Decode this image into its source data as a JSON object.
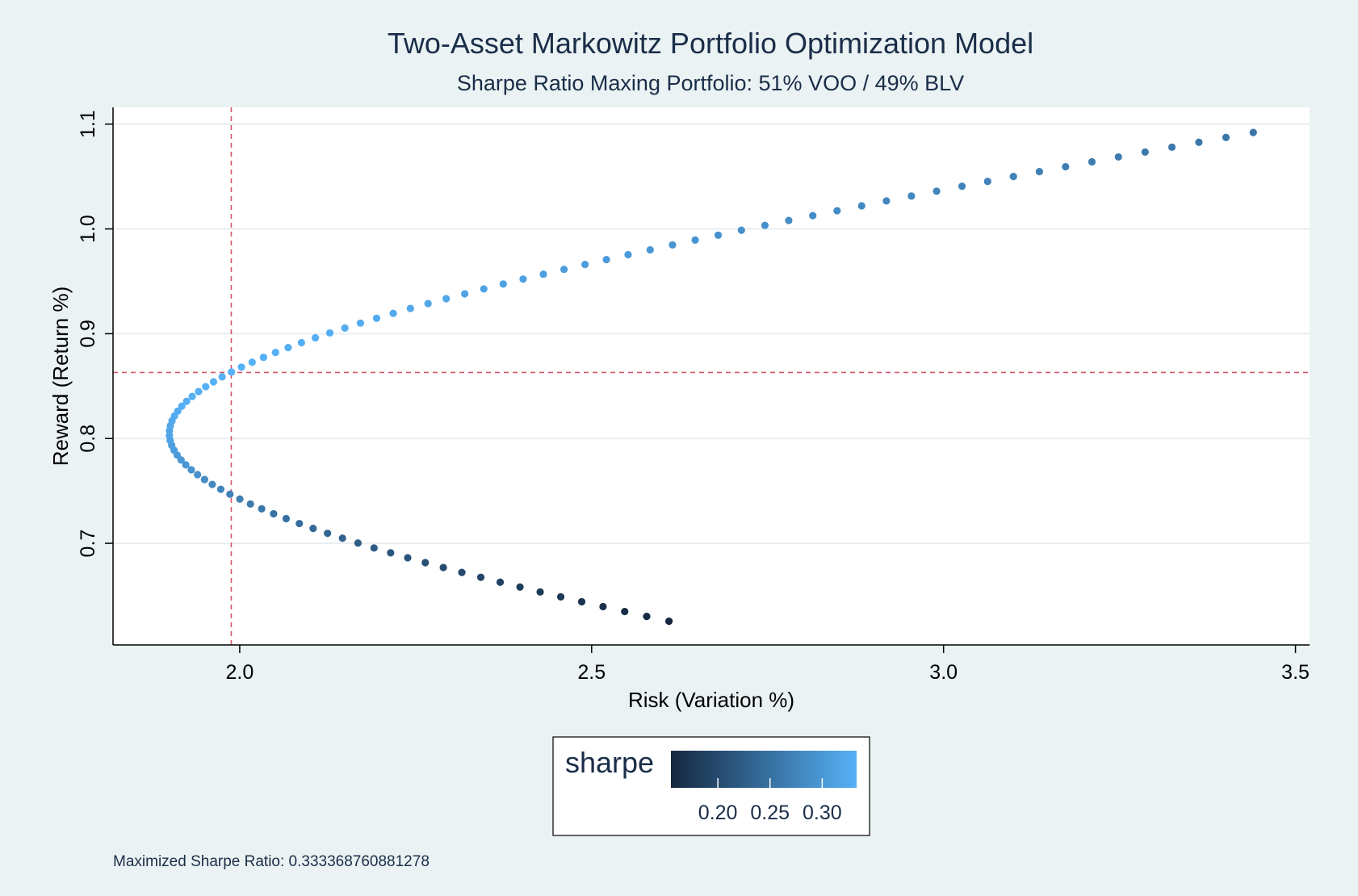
{
  "chart_data": {
    "type": "scatter",
    "title": "Two-Asset Markowitz Portfolio Optimization Model",
    "subtitle": "Sharpe Ratio Maxing Portfolio: 51% VOO / 49% BLV",
    "xlabel": "Risk (Variation %)",
    "ylabel": "Reward (Return %)",
    "xlim": [
      1.82,
      3.52
    ],
    "ylim": [
      0.603,
      1.116
    ],
    "x_ticks": [
      "2.0",
      "2.5",
      "3.0",
      "3.5"
    ],
    "y_ticks": [
      "0.7",
      "0.8",
      "0.9",
      "1.0",
      "1.1"
    ],
    "grid": "horizontal",
    "reference_lines": {
      "x": 1.988,
      "y": 0.863,
      "style": "dashed",
      "color": "#d5566a"
    },
    "color_variable": "sharpe",
    "colorbar": {
      "title": "sharpe",
      "ticks": [
        "0.20",
        "0.25",
        "0.30"
      ],
      "range": [
        0.155,
        0.333
      ],
      "color_low": "#152840",
      "color_high": "#56b1f7",
      "placement": "bottom"
    },
    "frontier": {
      "ret_min": 0.6256,
      "ret_max": 1.092,
      "min_var_return": 0.8048,
      "min_var_risk": 1.9,
      "risk_at_max": 3.44,
      "n_points": 101
    },
    "points_summary": [
      {
        "weight_voo": 0.0,
        "risk": 2.62,
        "return": 0.626,
        "sharpe": 0.155
      },
      {
        "weight_voo": 0.51,
        "risk": 1.988,
        "return": 0.863,
        "sharpe": 0.333
      },
      {
        "weight_voo": 1.0,
        "risk": 3.44,
        "return": 1.092,
        "sharpe": 0.24
      }
    ]
  },
  "footnote": "Maximized Sharpe Ratio: 0.333368760881278"
}
